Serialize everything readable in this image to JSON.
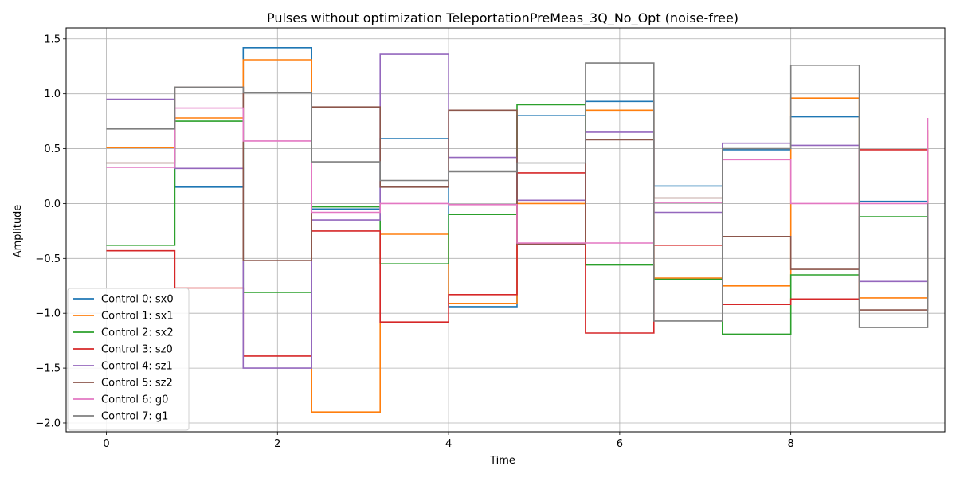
{
  "chart_data": {
    "type": "line",
    "step": "post",
    "title": "Pulses without optimization TeleportationPreMeas_3Q_No_Opt (noise-free)",
    "xlabel": "Time",
    "ylabel": "Amplitude",
    "xlim": [
      -0.47,
      9.8
    ],
    "ylim": [
      -2.08,
      1.6
    ],
    "xticks": [
      0,
      2,
      4,
      6,
      8
    ],
    "yticks": [
      -2.0,
      -1.5,
      -1.0,
      -0.5,
      0.0,
      0.5,
      1.0,
      1.5
    ],
    "xtick_labels": [
      "0",
      "2",
      "4",
      "6",
      "8"
    ],
    "ytick_labels": [
      "−2.0",
      "−1.5",
      "−1.0",
      "−0.5",
      "0.0",
      "0.5",
      "1.0",
      "1.5"
    ],
    "grid": true,
    "legend_position": "lower-left",
    "x": [
      0,
      0.8,
      1.6,
      2.4,
      3.2,
      4.0,
      4.8,
      5.6,
      6.4,
      7.2,
      8.0,
      8.8,
      9.6
    ],
    "series": [
      {
        "name": "Control 0: sx0",
        "color": "#1f77b4",
        "values": [
          0.51,
          0.15,
          1.42,
          -0.05,
          0.59,
          -0.94,
          0.8,
          0.93,
          0.16,
          0.49,
          0.79,
          0.02,
          -0.69
        ]
      },
      {
        "name": "Control 1: sx1",
        "color": "#ff7f0e",
        "values": [
          0.51,
          0.78,
          1.31,
          -1.9,
          -0.28,
          -0.91,
          0.0,
          0.85,
          -0.68,
          -0.75,
          0.96,
          -0.86,
          0.67
        ]
      },
      {
        "name": "Control 2: sx2",
        "color": "#2ca02c",
        "values": [
          -0.38,
          0.75,
          -0.81,
          -0.03,
          -0.55,
          -0.1,
          0.9,
          -0.56,
          -0.69,
          -1.19,
          -0.65,
          -0.12,
          -0.85
        ]
      },
      {
        "name": "Control 3: sz0",
        "color": "#d62728",
        "values": [
          -0.43,
          -0.77,
          -1.39,
          -0.25,
          -1.08,
          -0.83,
          0.28,
          -1.18,
          -0.38,
          -0.92,
          -0.87,
          0.49,
          -0.4
        ]
      },
      {
        "name": "Control 4: sz1",
        "color": "#9467bd",
        "values": [
          0.95,
          0.32,
          -1.5,
          -0.15,
          1.36,
          0.42,
          0.03,
          0.65,
          -0.08,
          0.55,
          0.53,
          -0.71,
          0.0
        ]
      },
      {
        "name": "Control 5: sz2",
        "color": "#8c564b",
        "values": [
          0.37,
          1.06,
          -0.52,
          0.88,
          0.15,
          0.85,
          -0.37,
          0.58,
          0.05,
          -0.3,
          -0.6,
          -0.97,
          -0.4
        ]
      },
      {
        "name": "Control 6: g0",
        "color": "#e377c2",
        "values": [
          0.33,
          0.87,
          0.57,
          -0.08,
          0.0,
          -0.01,
          -0.36,
          -0.36,
          0.01,
          0.4,
          0.0,
          0.0,
          0.78
        ]
      },
      {
        "name": "Control 7: g1",
        "color": "#7f7f7f",
        "values": [
          0.68,
          1.06,
          1.01,
          0.38,
          0.21,
          0.29,
          0.37,
          1.28,
          -1.07,
          0.5,
          1.26,
          -1.13,
          0.0
        ]
      }
    ]
  }
}
